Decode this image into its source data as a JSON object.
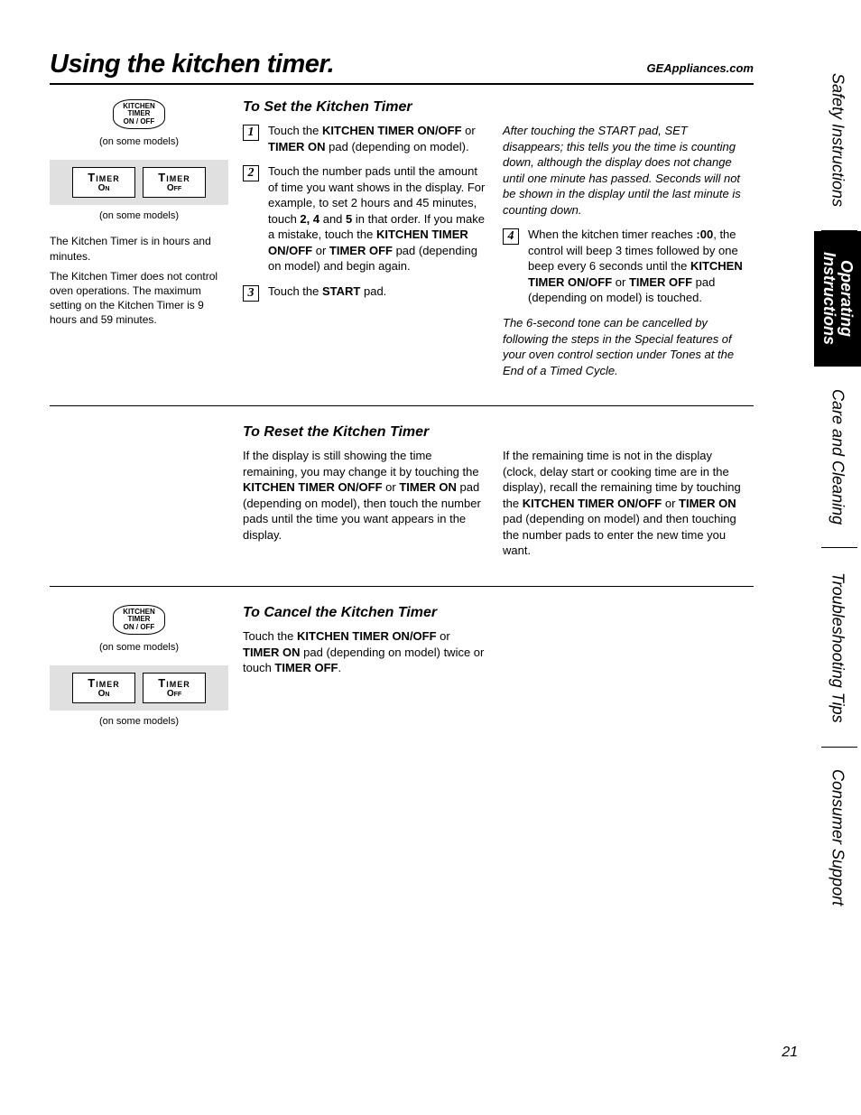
{
  "header": {
    "title": "Using the kitchen timer.",
    "url": "GEAppliances.com"
  },
  "buttons": {
    "kitchen_timer_label": "KITCHEN\nTIMER\nON / OFF",
    "on_some_models": "(on some models)",
    "timer_on_main": "Timer",
    "timer_on_sub": "On",
    "timer_off_main": "Timer",
    "timer_off_sub": "Off"
  },
  "left_notes": {
    "line1": "The Kitchen Timer is in hours and minutes.",
    "line2": "The Kitchen Timer does not control oven operations. The maximum setting on the Kitchen Timer is 9 hours and 59 minutes."
  },
  "set_section": {
    "heading": "To Set the Kitchen Timer",
    "step1": "Touch the <b>KITCHEN TIMER ON/OFF</b> or <b>TIMER ON</b> pad (depending on model).",
    "step2": "Touch the number pads until the amount of time you want shows in the display. For example, to set 2 hours and 45 minutes, touch <b>2, 4</b> and <b>5</b> in that order. If you make a mistake, touch the <b>KITCHEN TIMER ON/OFF</b> or <b>TIMER OFF</b> pad (depending on model) and begin again.",
    "step3": "Touch the <b>START</b> pad.",
    "after_start": "After touching the START pad, SET disappears; this tells you the time is counting down, although the display does not change until one minute has passed. Seconds will not be shown in the display until the last minute is counting down.",
    "step4": "When the kitchen timer reaches <b>:00</b>, the control will beep 3 times followed by one beep every 6 seconds until the <b>KITCHEN TIMER ON/OFF</b> or <b>TIMER OFF</b> pad (depending on model) is touched.",
    "tone_note": "The 6-second tone can be cancelled by following the steps in the Special features of your oven control section under Tones at the End of a Timed Cycle."
  },
  "reset_section": {
    "heading": "To Reset the Kitchen Timer",
    "col1": "If the display is still showing the time remaining, you may change it by touching the <b>KITCHEN TIMER ON/OFF</b> or <b>TIMER ON</b> pad (depending on model), then touch the number pads until the time you want appears in the display.",
    "col2": "If the remaining time is not in the display (clock, delay start or cooking time are in the display), recall the remaining time by touching the <b>KITCHEN TIMER ON/OFF</b> or <b>TIMER ON</b> pad (depending on model) and then touching the number pads to enter the new time you want."
  },
  "cancel_section": {
    "heading": "To Cancel the Kitchen Timer",
    "text": "Touch the <b>KITCHEN TIMER ON/OFF</b> or <b>TIMER ON</b> pad (depending on model) twice or touch <b>TIMER OFF</b>."
  },
  "tabs": {
    "safety": "Safety Instructions",
    "operating_l1": "Operating",
    "operating_l2": "Instructions",
    "care": "Care and Cleaning",
    "troubleshooting": "Troubleshooting Tips",
    "consumer": "Consumer Support"
  },
  "page_number": "21"
}
